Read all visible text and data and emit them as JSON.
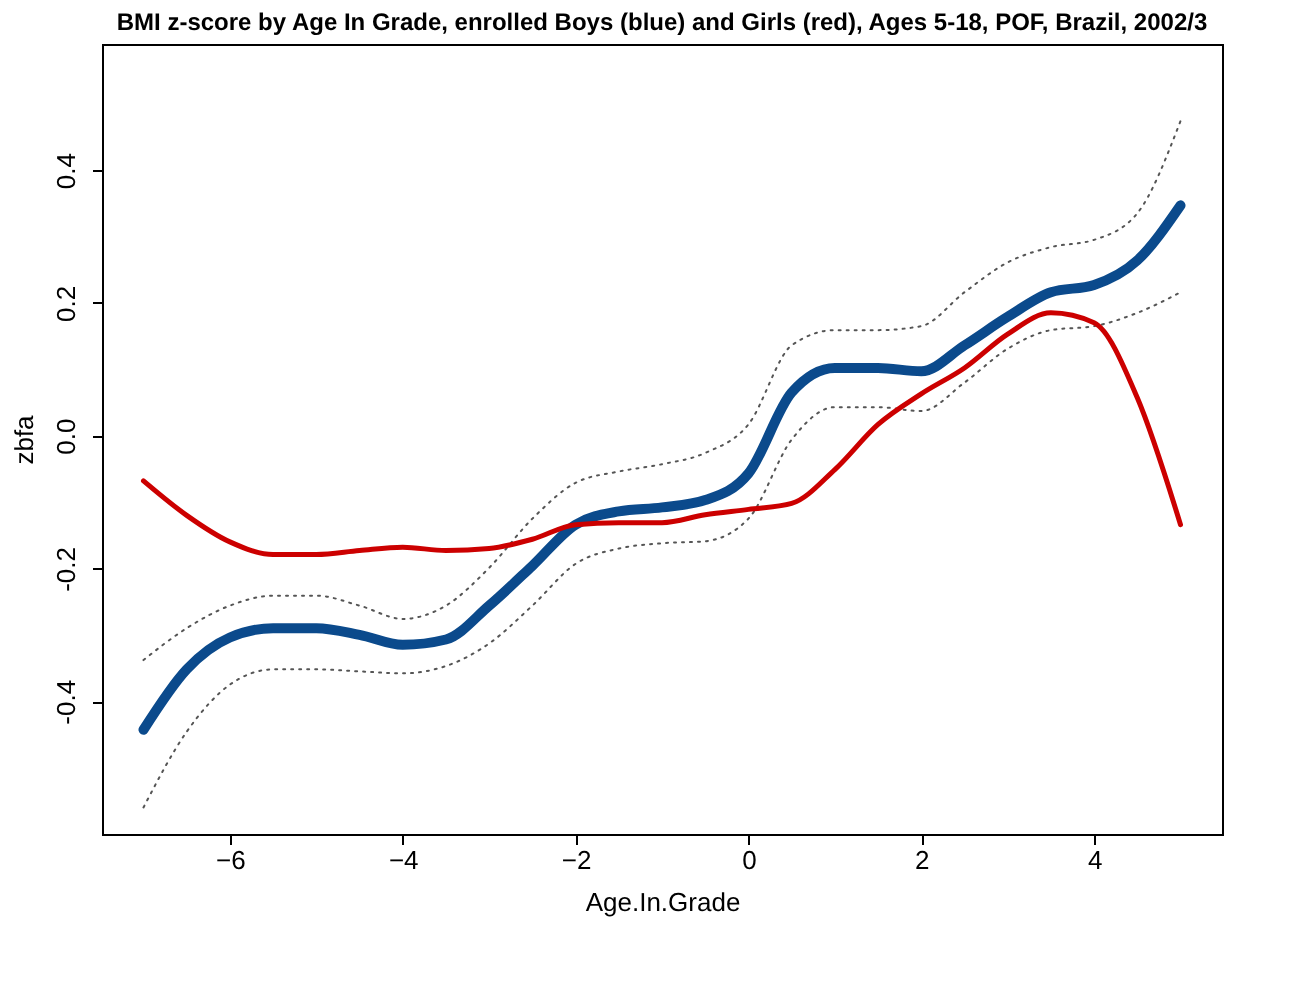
{
  "chart_data": {
    "type": "line",
    "title": "BMI z-score by Age In Grade, enrolled Boys (blue) and Girls (red), Ages 5-18, POF, Brazil, 2002/3",
    "xlabel": "Age.In.Grade",
    "ylabel": "zbfa",
    "x": [
      -7,
      -6.5,
      -6,
      -5.5,
      -5,
      -4.5,
      -4,
      -3.5,
      -3,
      -2.5,
      -2,
      -1.5,
      -1,
      -0.5,
      0,
      0.5,
      1,
      1.5,
      2,
      2.5,
      3,
      3.5,
      4,
      4.5,
      5
    ],
    "series": [
      {
        "color": "#555555",
        "line_style": "dotted",
        "values": [
          -0.56,
          -0.446,
          -0.375,
          -0.352,
          -0.352,
          -0.355,
          -0.358,
          -0.347,
          -0.313,
          -0.256,
          -0.193,
          -0.17,
          -0.162,
          -0.159,
          -0.125,
          -0.006,
          0.043,
          0.043,
          0.037,
          0.08,
          0.131,
          0.159,
          0.165,
          0.185,
          0.216
        ]
      },
      {
        "color": "#555555",
        "line_style": "dotted",
        "values": [
          -0.338,
          -0.29,
          -0.256,
          -0.241,
          -0.241,
          -0.256,
          -0.276,
          -0.256,
          -0.199,
          -0.125,
          -0.071,
          -0.054,
          -0.043,
          -0.026,
          0.017,
          0.136,
          0.159,
          0.159,
          0.165,
          0.216,
          0.261,
          0.284,
          0.295,
          0.335,
          0.474
        ]
      },
      {
        "color": "#0b4a8c",
        "values": [
          -0.443,
          -0.352,
          -0.304,
          -0.29,
          -0.29,
          -0.3,
          -0.315,
          -0.307,
          -0.256,
          -0.196,
          -0.134,
          -0.114,
          -0.108,
          -0.097,
          -0.057,
          0.065,
          0.102,
          0.102,
          0.097,
          0.136,
          0.179,
          0.216,
          0.227,
          0.264,
          0.347
        ]
      },
      {
        "color": "#cc0000",
        "values": [
          -0.068,
          -0.12,
          -0.16,
          -0.179,
          -0.179,
          -0.173,
          -0.168,
          -0.173,
          -0.17,
          -0.156,
          -0.134,
          -0.131,
          -0.131,
          -0.119,
          -0.111,
          -0.102,
          -0.051,
          0.017,
          0.063,
          0.102,
          0.153,
          0.185,
          0.17,
          0.057,
          -0.134
        ]
      }
    ],
    "xlim": [
      -7.48,
      5.48
    ],
    "xticks": [
      -6,
      -4,
      -2,
      0,
      2,
      4
    ],
    "ylim": [
      -0.6,
      0.59
    ],
    "yticks": [
      {
        "value": -0.4,
        "label": "-0.4"
      },
      {
        "value": -0.2,
        "label": "-0.2"
      },
      {
        "value": 0,
        "label": "0.0"
      },
      {
        "value": 0.2,
        "label": "0.2"
      },
      {
        "value": 0.4,
        "label": "0.4"
      }
    ],
    "grid": false,
    "marker": "none",
    "line_style": "solid"
  }
}
